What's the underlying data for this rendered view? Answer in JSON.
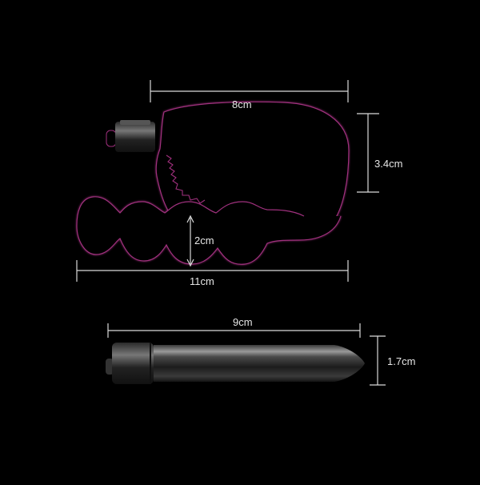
{
  "dimensions": {
    "top_width": "8cm",
    "top_height": "3.4cm",
    "bead_diameter": "2cm",
    "total_length": "11cm",
    "bullet_length": "9cm",
    "bullet_diameter": "1.7cm"
  },
  "colors": {
    "background": "#000000",
    "measure_line": "#d9d9d9",
    "outline_glow": "#a0307e",
    "label": "#e6e6e6"
  }
}
